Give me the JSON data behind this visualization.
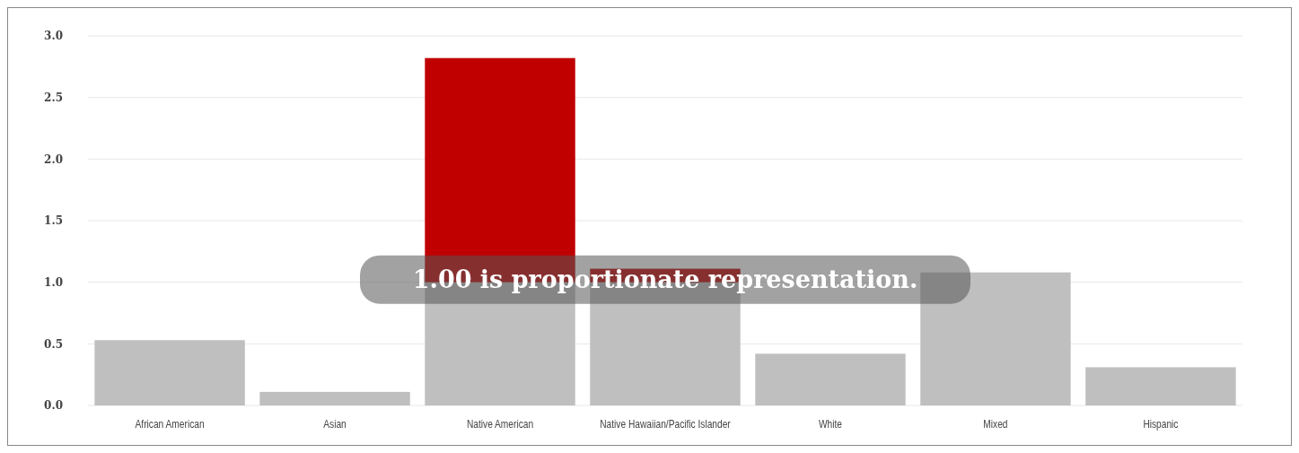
{
  "chart_data": {
    "type": "bar",
    "stacked": true,
    "categories": [
      "African American",
      "Asian",
      "Native American",
      "Native Hawaiian/Pacific Islander",
      "White",
      "Mixed",
      "Hispanic"
    ],
    "series": [
      {
        "color": "#bfbfbf",
        "values": [
          0.53,
          0.11,
          1.0,
          1.0,
          0.42,
          1.08,
          0.31
        ]
      },
      {
        "color": "#c00000",
        "values": [
          null,
          null,
          1.82,
          0.11,
          null,
          null,
          null
        ]
      }
    ],
    "ylim": [
      0,
      3
    ],
    "yticks": [
      {
        "value": 0,
        "label": "0.0"
      },
      {
        "value": 0.5,
        "label": "0.5"
      },
      {
        "value": 1,
        "label": "1.0"
      },
      {
        "value": 1.5,
        "label": "1.5"
      },
      {
        "value": 2,
        "label": "2.0"
      },
      {
        "value": 2.5,
        "label": "2.5"
      },
      {
        "value": 3,
        "label": "3.0"
      }
    ],
    "grid": "y",
    "annotations": [
      {
        "text": "1.00 is proportionate representation.",
        "y": 1.0
      }
    ]
  }
}
